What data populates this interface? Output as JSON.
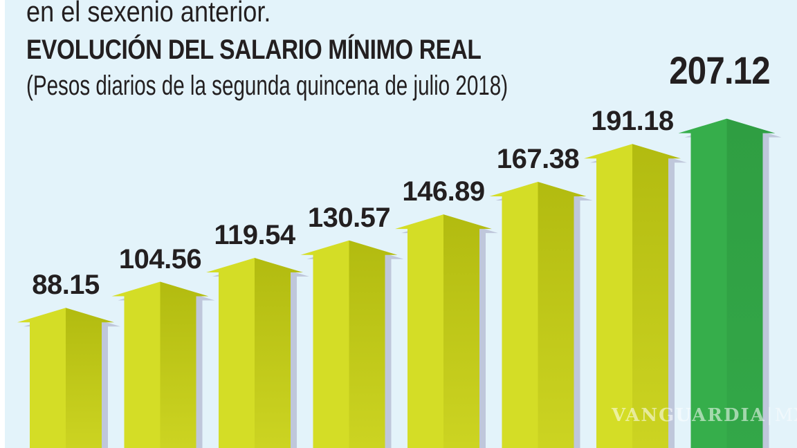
{
  "header": {
    "intro_line": "en el sexenio anterior.",
    "title": "EVOLUCIÓN DEL SALARIO MÍNIMO REAL",
    "subtitle": "(Pesos diarios de la segunda quincena de julio 2018)"
  },
  "watermark": {
    "brand": "VANGUARDIA",
    "sep": "|",
    "suffix": "MX"
  },
  "chart_data": {
    "type": "bar",
    "title": "EVOLUCIÓN DEL SALARIO MÍNIMO REAL",
    "subtitle": "(Pesos diarios de la segunda quincena de julio 2018)",
    "unit": "pesos diarios (segunda quincena de julio 2018)",
    "values": [
      88.15,
      104.56,
      119.54,
      130.57,
      146.89,
      167.38,
      191.18,
      207.12
    ],
    "labels": [
      "88.15",
      "104.56",
      "119.54",
      "130.57",
      "146.89",
      "167.38",
      "191.18",
      "207.12"
    ],
    "highlight_index": 7,
    "bar_shape": "upward-arrow",
    "ylim": [
      0,
      282
    ],
    "grid": false,
    "legend": false,
    "colors": {
      "background": "#e3f3fa",
      "bar_left_face": "#d4dd26",
      "bar_right_face_top": "#b2bb10",
      "bar_right_face_bottom": "#ccd422",
      "highlight_left_face": "#36ae4b",
      "highlight_right_face_top": "#2f9e42",
      "highlight_right_face_bottom": "#33a748",
      "shadow": "#bfc7db",
      "label_text": "#231f20"
    }
  }
}
